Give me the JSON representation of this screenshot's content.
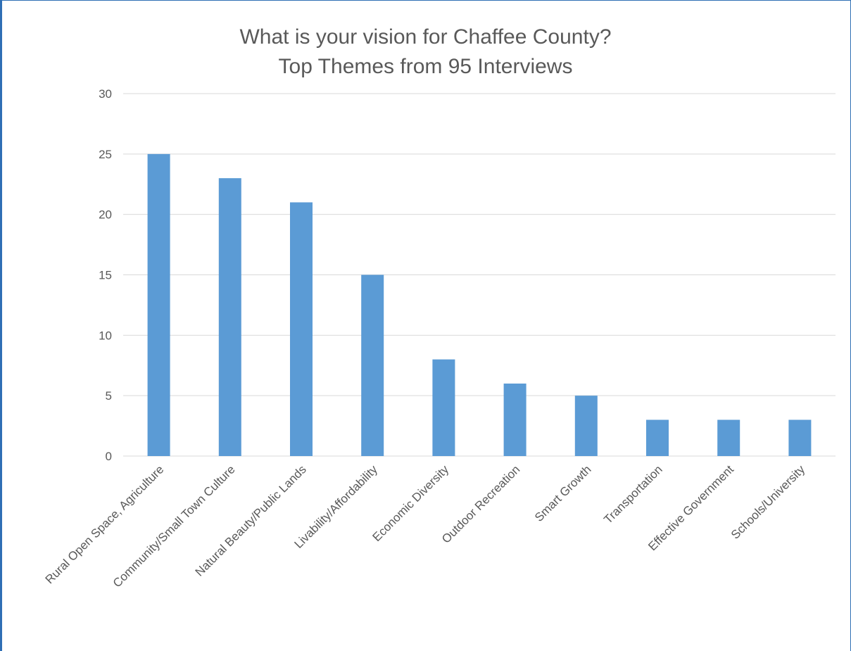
{
  "chart_data": {
    "type": "bar",
    "title": "What is your vision for Chaffee County?",
    "subtitle": "Top Themes from 95 Interviews",
    "categories": [
      "Rural Open Space, Agriculture",
      "Community/Small Town Culture",
      "Natural Beauty/Public Lands",
      "Livability/Affordability",
      "Economic Diversity",
      "Outdoor Recreation",
      "Smart Growth",
      "Transportation",
      "Effective Government",
      "Schools/University"
    ],
    "values": [
      25,
      23,
      21,
      15,
      8,
      6,
      5,
      3,
      3,
      3
    ],
    "ylim": [
      0,
      30
    ],
    "yticks": [
      0,
      5,
      10,
      15,
      20,
      25,
      30
    ],
    "grid": true,
    "bar_color": "#5b9bd5",
    "grid_color": "#d9d9d9"
  }
}
